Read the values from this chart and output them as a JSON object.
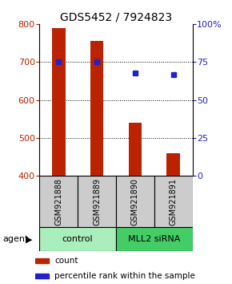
{
  "title": "GDS5452 / 7924823",
  "samples": [
    "GSM921888",
    "GSM921889",
    "GSM921890",
    "GSM921891"
  ],
  "counts": [
    790,
    755,
    540,
    460
  ],
  "percentiles": [
    75,
    75,
    68,
    67
  ],
  "ylim_left": [
    400,
    800
  ],
  "ylim_right": [
    0,
    100
  ],
  "yticks_left": [
    400,
    500,
    600,
    700,
    800
  ],
  "yticks_right": [
    0,
    25,
    50,
    75,
    100
  ],
  "ytick_labels_right": [
    "0",
    "25",
    "50",
    "75",
    "100%"
  ],
  "bar_color": "#bb2200",
  "dot_color": "#2222cc",
  "bar_bottom": 400,
  "groups": [
    {
      "label": "control",
      "samples": [
        0,
        1
      ],
      "color": "#aaeebb"
    },
    {
      "label": "MLL2 siRNA",
      "samples": [
        2,
        3
      ],
      "color": "#44cc66"
    }
  ],
  "sample_box_color": "#cccccc",
  "legend_items": [
    {
      "color": "#bb2200",
      "label": "count"
    },
    {
      "color": "#2222cc",
      "label": "percentile rank within the sample"
    }
  ],
  "agent_label": "agent",
  "title_fontsize": 10,
  "tick_fontsize": 8,
  "sample_fontsize": 7,
  "group_fontsize": 8,
  "legend_fontsize": 7.5,
  "agent_fontsize": 8,
  "bar_width": 0.35
}
